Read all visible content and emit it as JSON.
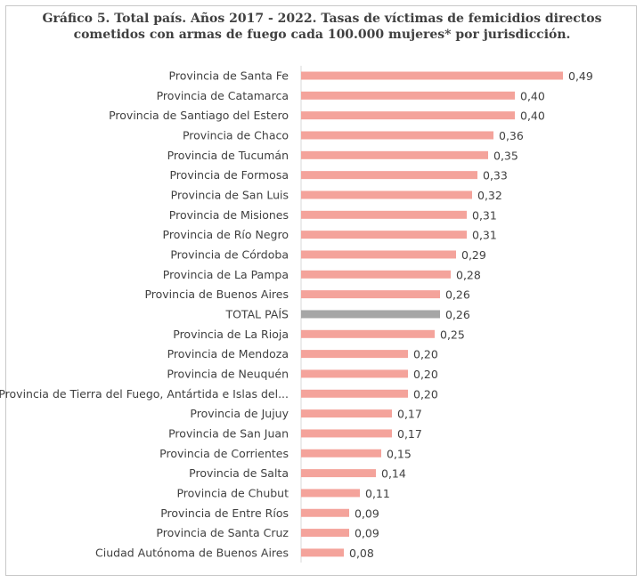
{
  "chart_data": {
    "type": "bar",
    "orientation": "horizontal",
    "title_line1": "Gráfico 5. Total país. Años 2017 - 2022. Tasas de víctimas de femicidios directos",
    "title_line2": "cometidos con armas de fuego cada 100.000 mujeres* por jurisdicción.",
    "categories": [
      "Provincia de Santa Fe",
      "Provincia de Catamarca",
      "Provincia de Santiago del Estero",
      "Provincia de Chaco",
      "Provincia de Tucumán",
      "Provincia de Formosa",
      "Provincia de San Luis",
      "Provincia de Misiones",
      "Provincia de Río Negro",
      "Provincia de Córdoba",
      "Provincia de La Pampa",
      "Provincia de Buenos Aires",
      "TOTAL PAÍS",
      "Provincia de La Rioja",
      "Provincia de Mendoza",
      "Provincia de Neuquén",
      "Provincia de Tierra del Fuego, Antártida e Islas del...",
      "Provincia de Jujuy",
      "Provincia de San Juan",
      "Provincia de Corrientes",
      "Provincia de Salta",
      "Provincia de Chubut",
      "Provincia de Entre Ríos",
      "Provincia de Santa Cruz",
      "Ciudad Autónoma de Buenos Aires"
    ],
    "values": [
      0.49,
      0.4,
      0.4,
      0.36,
      0.35,
      0.33,
      0.32,
      0.31,
      0.31,
      0.29,
      0.28,
      0.26,
      0.26,
      0.25,
      0.2,
      0.2,
      0.2,
      0.17,
      0.17,
      0.15,
      0.14,
      0.11,
      0.09,
      0.09,
      0.08
    ],
    "value_labels": [
      "0,49",
      "0,40",
      "0,40",
      "0,36",
      "0,35",
      "0,33",
      "0,32",
      "0,31",
      "0,31",
      "0,29",
      "0,28",
      "0,26",
      "0,26",
      "0,25",
      "0,20",
      "0,20",
      "0,20",
      "0,17",
      "0,17",
      "0,15",
      "0,14",
      "0,11",
      "0,09",
      "0,09",
      "0,08"
    ],
    "highlight_category": "TOTAL PAÍS",
    "xlim": [
      0,
      0.5
    ],
    "grid": false,
    "colors": {
      "bar": "#f4a39b",
      "highlight": "#a6a6a6",
      "axis": "#d9d9d9",
      "text": "#404040"
    }
  }
}
